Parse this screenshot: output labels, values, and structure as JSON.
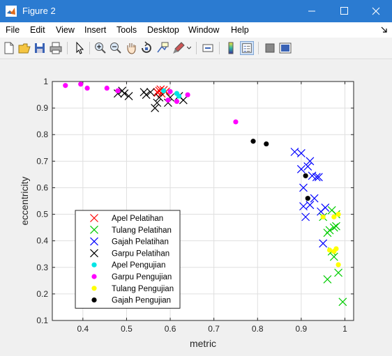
{
  "window": {
    "title": "Figure 2"
  },
  "menubar": {
    "items": [
      {
        "label": "File"
      },
      {
        "label": "Edit"
      },
      {
        "label": "View"
      },
      {
        "label": "Insert"
      },
      {
        "label": "Tools"
      },
      {
        "label": "Desktop"
      },
      {
        "label": "Window"
      },
      {
        "label": "Help"
      }
    ]
  },
  "toolbar": {
    "icons": [
      "new-figure-icon",
      "open-file-icon",
      "save-icon",
      "print-icon",
      "pointer-icon",
      "zoom-in-icon",
      "zoom-out-icon",
      "pan-icon",
      "rotate-3d-icon",
      "data-cursor-icon",
      "brush-icon",
      "link-plot-icon",
      "colorbar-icon",
      "legend-icon",
      "hide-plot-tools-icon",
      "show-plot-tools-icon"
    ]
  },
  "chart_data": {
    "type": "scatter",
    "title": "",
    "xlabel": "metric",
    "ylabel": "eccentricity",
    "xlim": [
      0.33,
      1.02
    ],
    "ylim": [
      0.1,
      1.0
    ],
    "xticks": [
      "0.4",
      "0.5",
      "0.6",
      "0.7",
      "0.8",
      "0.9",
      "1"
    ],
    "yticks": [
      "0.1",
      "0.2",
      "0.3",
      "0.4",
      "0.5",
      "0.6",
      "0.7",
      "0.8",
      "0.9",
      "1"
    ],
    "xtick_values": [
      0.4,
      0.5,
      0.6,
      0.7,
      0.8,
      0.9,
      1.0
    ],
    "ytick_values": [
      0.1,
      0.2,
      0.3,
      0.4,
      0.5,
      0.6,
      0.7,
      0.8,
      0.9,
      1.0
    ],
    "grid": true,
    "legend_position": "bottom-left",
    "series": [
      {
        "name": "Apel Pelatihan",
        "marker": "x",
        "color": "#ff0000",
        "points": [
          [
            0.57,
            0.96
          ],
          [
            0.575,
            0.965
          ],
          [
            0.58,
            0.955
          ],
          [
            0.585,
            0.968
          ],
          [
            0.572,
            0.958
          ],
          [
            0.59,
            0.962
          ],
          [
            0.578,
            0.97
          ]
        ]
      },
      {
        "name": "Tulang Pelatihan",
        "marker": "x",
        "color": "#00cc00",
        "points": [
          [
            0.97,
            0.515
          ],
          [
            0.965,
            0.44
          ],
          [
            0.975,
            0.45
          ],
          [
            0.96,
            0.43
          ],
          [
            0.98,
            0.455
          ],
          [
            0.95,
            0.49
          ],
          [
            0.97,
            0.36
          ],
          [
            0.975,
            0.34
          ],
          [
            0.985,
            0.28
          ],
          [
            0.96,
            0.255
          ],
          [
            0.995,
            0.17
          ],
          [
            0.98,
            0.5
          ]
        ]
      },
      {
        "name": "Gajah Pelatihan",
        "marker": "x",
        "color": "#0000ff",
        "points": [
          [
            0.885,
            0.735
          ],
          [
            0.9,
            0.73
          ],
          [
            0.92,
            0.7
          ],
          [
            0.915,
            0.68
          ],
          [
            0.9,
            0.67
          ],
          [
            0.925,
            0.645
          ],
          [
            0.935,
            0.64
          ],
          [
            0.905,
            0.6
          ],
          [
            0.93,
            0.56
          ],
          [
            0.905,
            0.53
          ],
          [
            0.92,
            0.535
          ],
          [
            0.955,
            0.525
          ],
          [
            0.945,
            0.51
          ],
          [
            0.91,
            0.49
          ],
          [
            0.95,
            0.39
          ],
          [
            0.94,
            0.64
          ]
        ]
      },
      {
        "name": "Garpu Pelatihan",
        "marker": "x",
        "color": "#000000",
        "points": [
          [
            0.48,
            0.955
          ],
          [
            0.49,
            0.965
          ],
          [
            0.495,
            0.955
          ],
          [
            0.505,
            0.945
          ],
          [
            0.54,
            0.96
          ],
          [
            0.545,
            0.95
          ],
          [
            0.555,
            0.96
          ],
          [
            0.57,
            0.92
          ],
          [
            0.575,
            0.94
          ],
          [
            0.565,
            0.9
          ],
          [
            0.6,
            0.94
          ],
          [
            0.595,
            0.92
          ],
          [
            0.62,
            0.945
          ],
          [
            0.63,
            0.93
          ]
        ]
      },
      {
        "name": "Apel Pengujian",
        "marker": "dot",
        "color": "#00e5e5",
        "points": [
          [
            0.585,
            0.965
          ],
          [
            0.615,
            0.955
          ],
          [
            0.62,
            0.945
          ]
        ]
      },
      {
        "name": "Garpu Pengujian",
        "marker": "dot",
        "color": "#ff00ff",
        "points": [
          [
            0.36,
            0.985
          ],
          [
            0.395,
            0.99
          ],
          [
            0.41,
            0.975
          ],
          [
            0.455,
            0.975
          ],
          [
            0.48,
            0.965
          ],
          [
            0.6,
            0.962
          ],
          [
            0.615,
            0.925
          ],
          [
            0.64,
            0.95
          ],
          [
            0.75,
            0.848
          ],
          [
            0.595,
            0.93
          ]
        ]
      },
      {
        "name": "Tulang Pengujian",
        "marker": "dot",
        "color": "#ffff00",
        "points": [
          [
            0.965,
            0.365
          ],
          [
            0.98,
            0.37
          ],
          [
            0.985,
            0.31
          ],
          [
            0.975,
            0.36
          ],
          [
            0.985,
            0.5
          ],
          [
            0.975,
            0.49
          ],
          [
            0.95,
            0.49
          ]
        ]
      },
      {
        "name": "Gajah Pengujian",
        "marker": "dot",
        "color": "#000000",
        "points": [
          [
            0.79,
            0.775
          ],
          [
            0.82,
            0.765
          ],
          [
            0.91,
            0.645
          ],
          [
            0.915,
            0.56
          ]
        ]
      }
    ]
  }
}
